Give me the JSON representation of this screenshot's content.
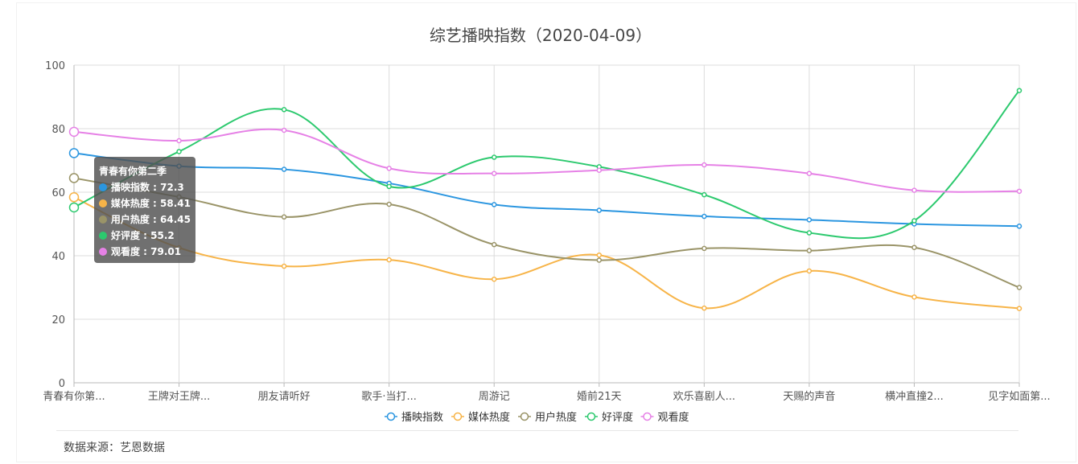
{
  "chart_data": {
    "type": "line",
    "title": "综艺播映指数（2020-04-09）",
    "categories": [
      "青春有你第...",
      "王牌对王牌...",
      "朋友请听好",
      "歌手·当打...",
      "周游记",
      "婚前21天",
      "欢乐喜剧人...",
      "天赐的声音",
      "横冲直撞2...",
      "见字如面第..."
    ],
    "ylim": [
      0,
      100
    ],
    "yticks": [
      0,
      20,
      40,
      60,
      80,
      100
    ],
    "grid": true,
    "smooth": true,
    "legend_position": "bottom",
    "series": [
      {
        "name": "播映指数",
        "color": "#2b96e0",
        "values": [
          72.3,
          68.2,
          67.2,
          62.8,
          56.1,
          54.3,
          52.4,
          51.3,
          50.0,
          49.3
        ]
      },
      {
        "name": "媒体热度",
        "color": "#f7b448",
        "values": [
          58.41,
          42.5,
          36.7,
          38.7,
          32.6,
          40.2,
          23.5,
          35.2,
          27.0,
          23.4
        ]
      },
      {
        "name": "用户热度",
        "color": "#9a9468",
        "values": [
          64.45,
          58.5,
          52.2,
          56.2,
          43.5,
          38.6,
          42.3,
          41.6,
          42.6,
          30.0
        ]
      },
      {
        "name": "好评度",
        "color": "#2cc96e",
        "values": [
          55.2,
          72.8,
          86.0,
          61.8,
          71.0,
          68.0,
          59.2,
          47.2,
          51.0,
          92.0
        ]
      },
      {
        "name": "观看度",
        "color": "#e681e6",
        "values": [
          79.01,
          76.2,
          79.5,
          67.5,
          65.9,
          66.9,
          68.6,
          65.9,
          60.6,
          60.3
        ]
      }
    ],
    "tooltip": {
      "category": "青春有你第二季",
      "items": [
        {
          "label": "播映指数 : 72.3",
          "color": "#2b96e0"
        },
        {
          "label": "媒体热度 : 58.41",
          "color": "#f7b448"
        },
        {
          "label": "用户热度 : 64.45",
          "color": "#9a9468"
        },
        {
          "label": "好评度 : 55.2",
          "color": "#2cc96e"
        },
        {
          "label": "观看度 : 79.01",
          "color": "#e681e6"
        }
      ]
    }
  },
  "source": "数据来源：艺恩数据"
}
